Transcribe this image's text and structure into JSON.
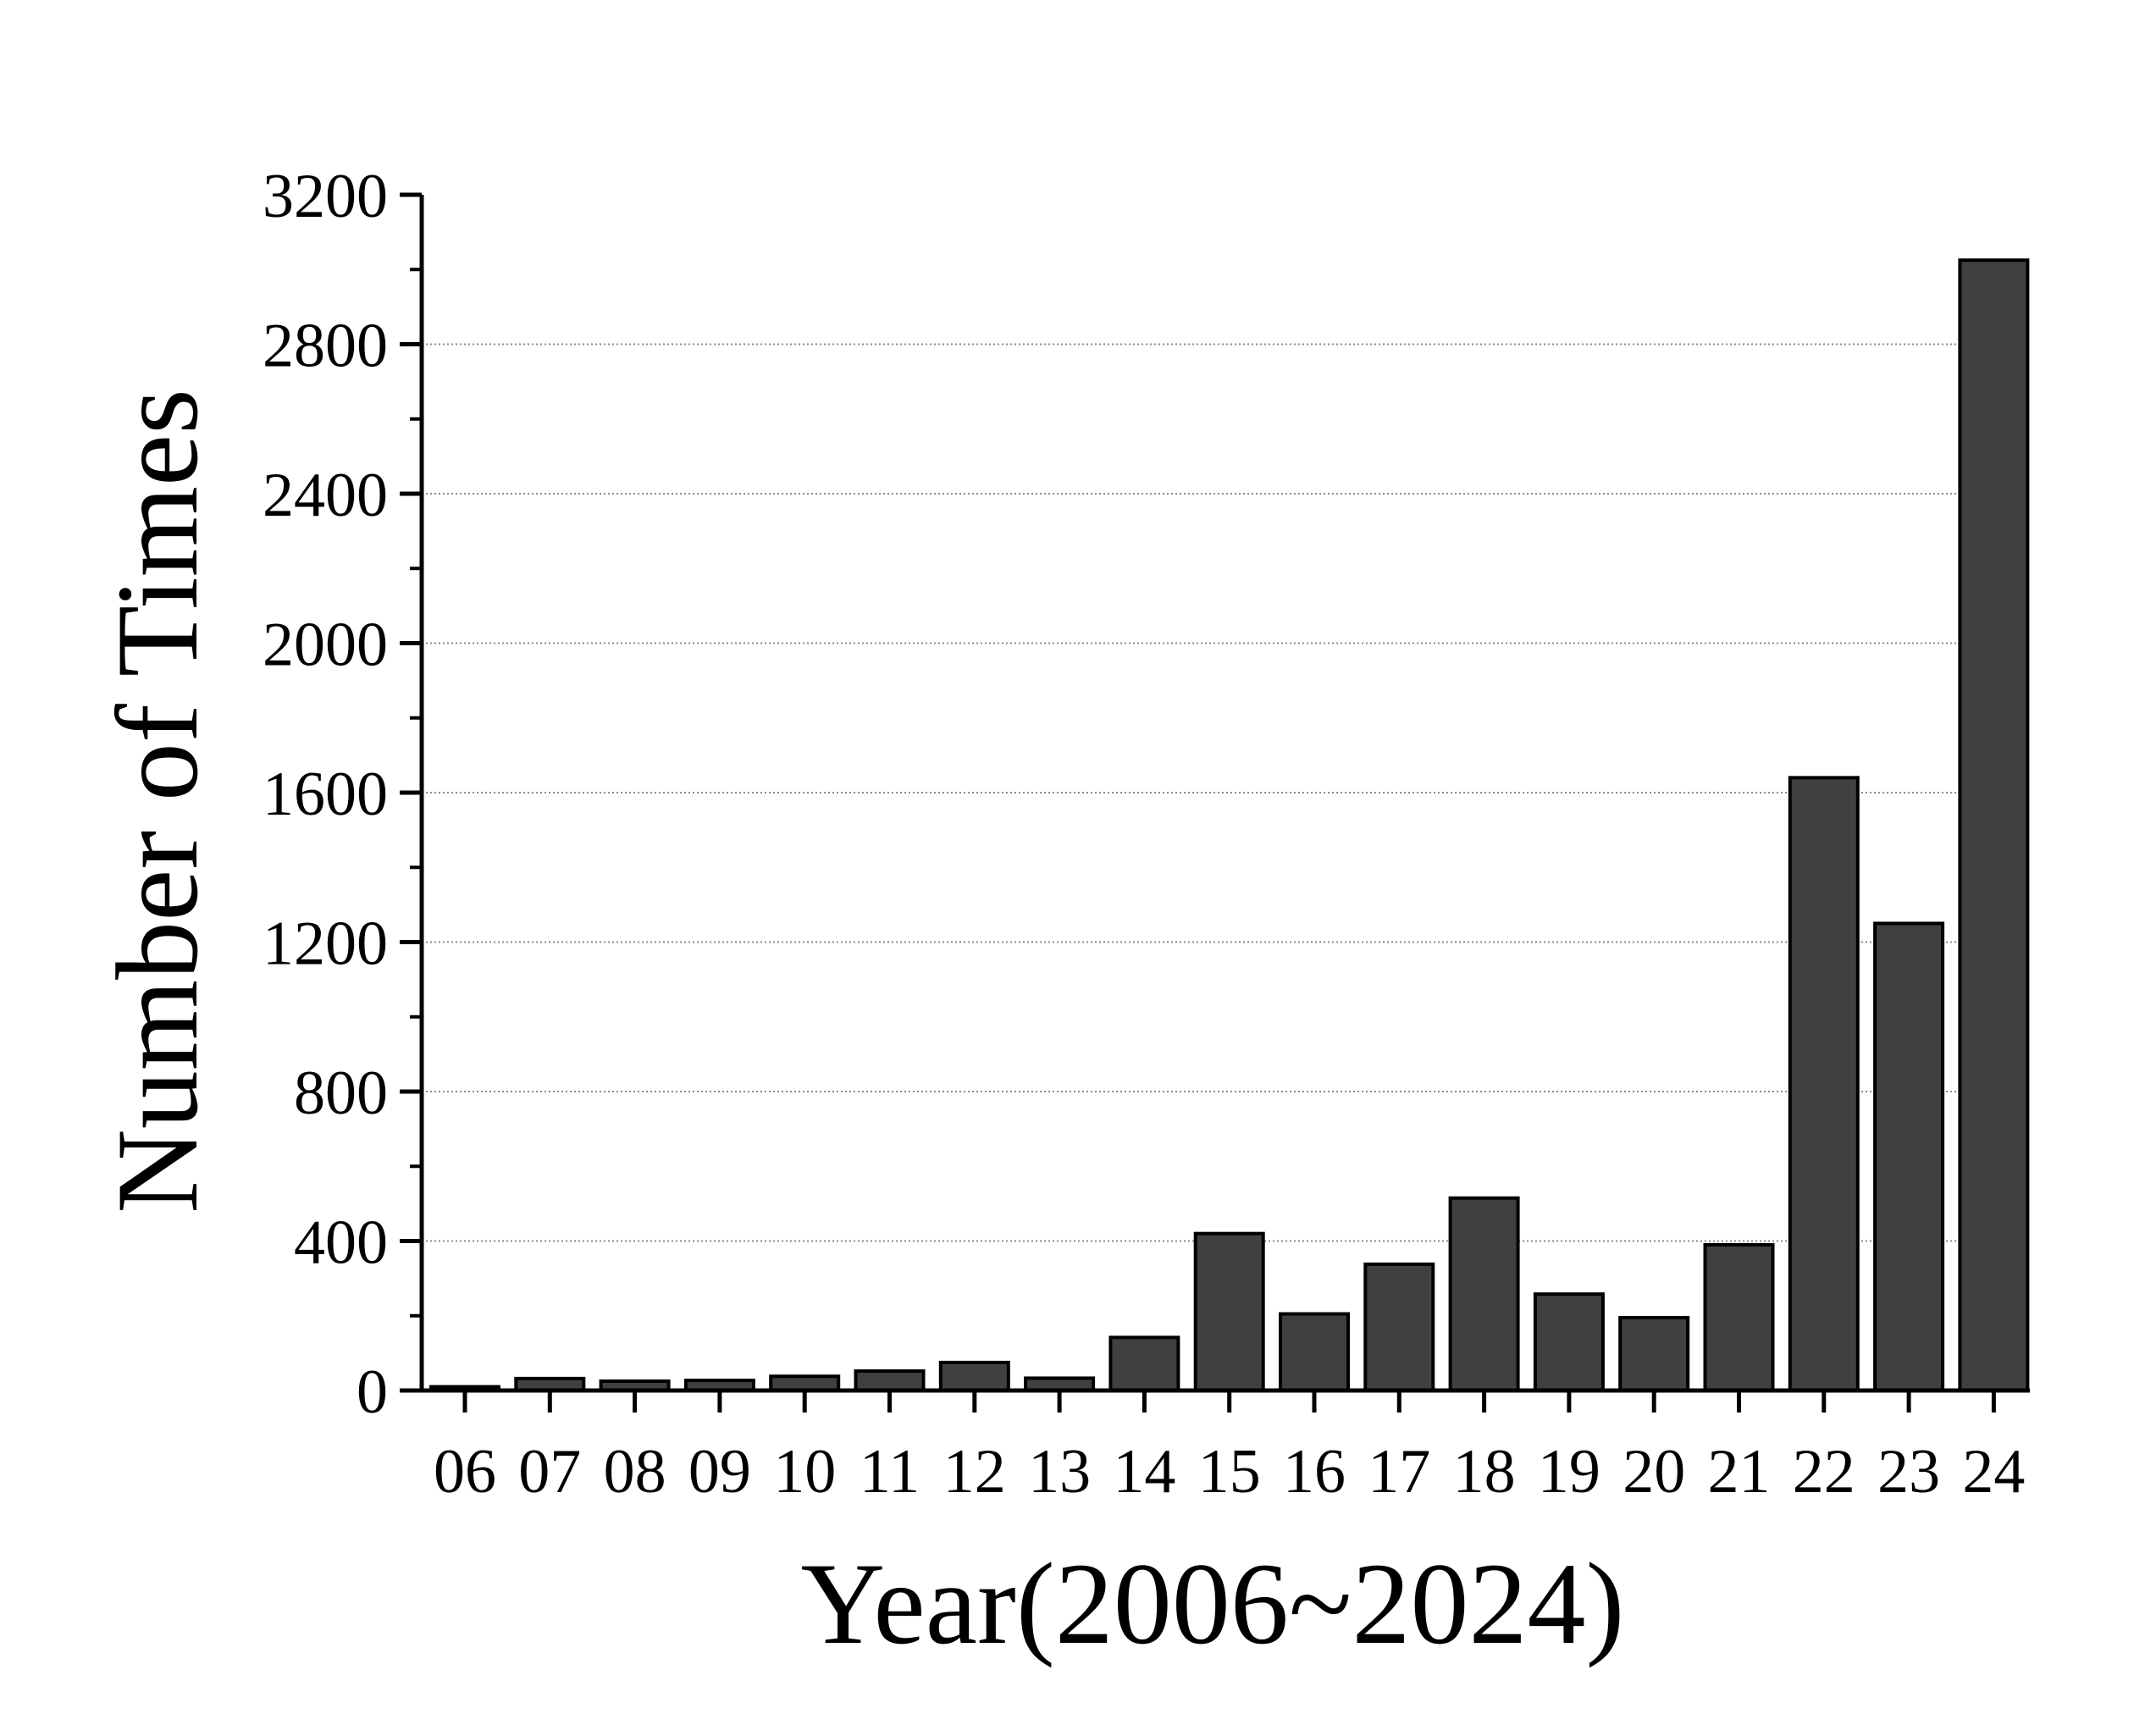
{
  "chart_data": {
    "type": "bar",
    "categories": [
      "06",
      "07",
      "08",
      "09",
      "10",
      "11",
      "12",
      "13",
      "14",
      "15",
      "16",
      "17",
      "18",
      "19",
      "20",
      "21",
      "22",
      "23",
      "24"
    ],
    "values": [
      10,
      32,
      25,
      27,
      38,
      52,
      75,
      33,
      142,
      420,
      205,
      338,
      515,
      258,
      195,
      390,
      1640,
      1250,
      3025
    ],
    "xlabel": "Year(2006~2024)",
    "ylabel": "Number of Times",
    "ylim": [
      0,
      3200
    ],
    "yticks": [
      0,
      400,
      800,
      1200,
      1600,
      2000,
      2400,
      2800,
      3200
    ],
    "grid": "horizontal-dotted",
    "bar_color": "#404040",
    "bar_edge_color": "#000000"
  }
}
